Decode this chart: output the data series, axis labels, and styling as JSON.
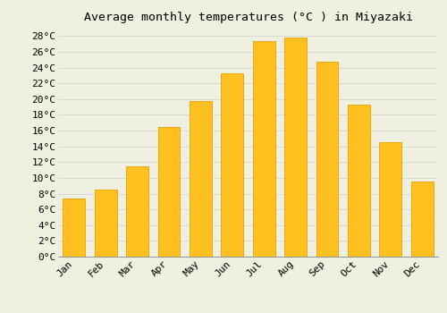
{
  "title": "Average monthly temperatures (°C ) in Miyazaki",
  "months": [
    "Jan",
    "Feb",
    "Mar",
    "Apr",
    "May",
    "Jun",
    "Jul",
    "Aug",
    "Sep",
    "Oct",
    "Nov",
    "Dec"
  ],
  "temperatures": [
    7.4,
    8.5,
    11.5,
    16.5,
    19.8,
    23.3,
    27.3,
    27.8,
    24.8,
    19.3,
    14.5,
    9.5
  ],
  "bar_color": "#FFC020",
  "bar_edge_color": "#E8A000",
  "background_color": "#F0F0E0",
  "grid_color": "#D8D8D8",
  "ylim": [
    0,
    29
  ],
  "title_fontsize": 9.5,
  "tick_fontsize": 8,
  "font_family": "monospace"
}
